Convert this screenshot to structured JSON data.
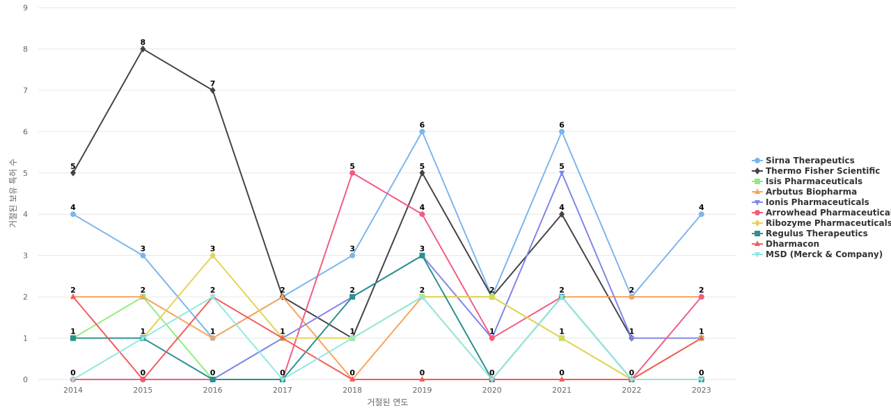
{
  "chart_data": {
    "type": "line",
    "xlabel": "거절된 연도",
    "ylabel": "거절된 보유 특허 수",
    "x": [
      "2014",
      "2015",
      "2016",
      "2017",
      "2018",
      "2019",
      "2020",
      "2021",
      "2022",
      "2023"
    ],
    "ylim": [
      0,
      9
    ],
    "yticks": [
      0,
      1,
      2,
      3,
      4,
      5,
      6,
      7,
      8,
      9
    ],
    "grid": true,
    "legend_position": "right",
    "series": [
      {
        "name": "Sirna Therapeutics",
        "color": "#7cb5ec",
        "marker": "circle",
        "values": [
          4,
          3,
          1,
          2,
          3,
          6,
          2,
          6,
          2,
          4
        ]
      },
      {
        "name": "Thermo Fisher Scientific",
        "color": "#434348",
        "marker": "diamond",
        "values": [
          5,
          8,
          7,
          2,
          1,
          5,
          2,
          4,
          1,
          1
        ]
      },
      {
        "name": "Isis Pharmaceuticals",
        "color": "#90ed7d",
        "marker": "square",
        "values": [
          1,
          2,
          0,
          1,
          1,
          2,
          2,
          1,
          0,
          1
        ]
      },
      {
        "name": "Arbutus Biopharma",
        "color": "#f7a35c",
        "marker": "triangle",
        "values": [
          2,
          2,
          1,
          2,
          0,
          2,
          0,
          2,
          2,
          2
        ]
      },
      {
        "name": "Ionis Pharmaceuticals",
        "color": "#8085e9",
        "marker": "triangle-down",
        "values": [
          0,
          0,
          0,
          1,
          2,
          3,
          1,
          5,
          1,
          1
        ]
      },
      {
        "name": "Arrowhead Pharmaceuticals",
        "color": "#f15c80",
        "marker": "circle",
        "values": [
          0,
          0,
          0,
          0,
          5,
          4,
          1,
          2,
          0,
          2
        ]
      },
      {
        "name": "Ribozyme Pharmaceuticals",
        "color": "#e4d354",
        "marker": "diamond",
        "values": [
          1,
          1,
          3,
          1,
          1,
          2,
          2,
          1,
          0,
          1
        ]
      },
      {
        "name": "Regulus Therapeutics",
        "color": "#2b908f",
        "marker": "square",
        "values": [
          1,
          1,
          0,
          0,
          2,
          3,
          0,
          2,
          0,
          0
        ]
      },
      {
        "name": "Dharmacon",
        "color": "#f45b5b",
        "marker": "triangle",
        "values": [
          2,
          0,
          2,
          1,
          0,
          0,
          0,
          0,
          0,
          1
        ]
      },
      {
        "name": "MSD (Merck & Company)",
        "color": "#91e8e1",
        "marker": "triangle-down",
        "values": [
          0,
          1,
          2,
          0,
          1,
          2,
          0,
          2,
          0,
          0
        ]
      }
    ],
    "data_labels": [
      {
        "x": "2014",
        "values": [
          5,
          4,
          2,
          1,
          0
        ]
      },
      {
        "x": "2015",
        "values": [
          8,
          3,
          2,
          1,
          0
        ]
      },
      {
        "x": "2016",
        "values": [
          7,
          3,
          2,
          1,
          0
        ]
      },
      {
        "x": "2017",
        "values": [
          2,
          1,
          0
        ]
      },
      {
        "x": "2018",
        "values": [
          5,
          3,
          2,
          1,
          0
        ]
      },
      {
        "x": "2019",
        "values": [
          6,
          5,
          4,
          3,
          2,
          0
        ]
      },
      {
        "x": "2020",
        "values": [
          2,
          1,
          0
        ]
      },
      {
        "x": "2021",
        "values": [
          6,
          5,
          4,
          2,
          1,
          0
        ]
      },
      {
        "x": "2022",
        "values": [
          2,
          1,
          0
        ]
      },
      {
        "x": "2023",
        "values": [
          4,
          2,
          1,
          0
        ]
      }
    ]
  }
}
